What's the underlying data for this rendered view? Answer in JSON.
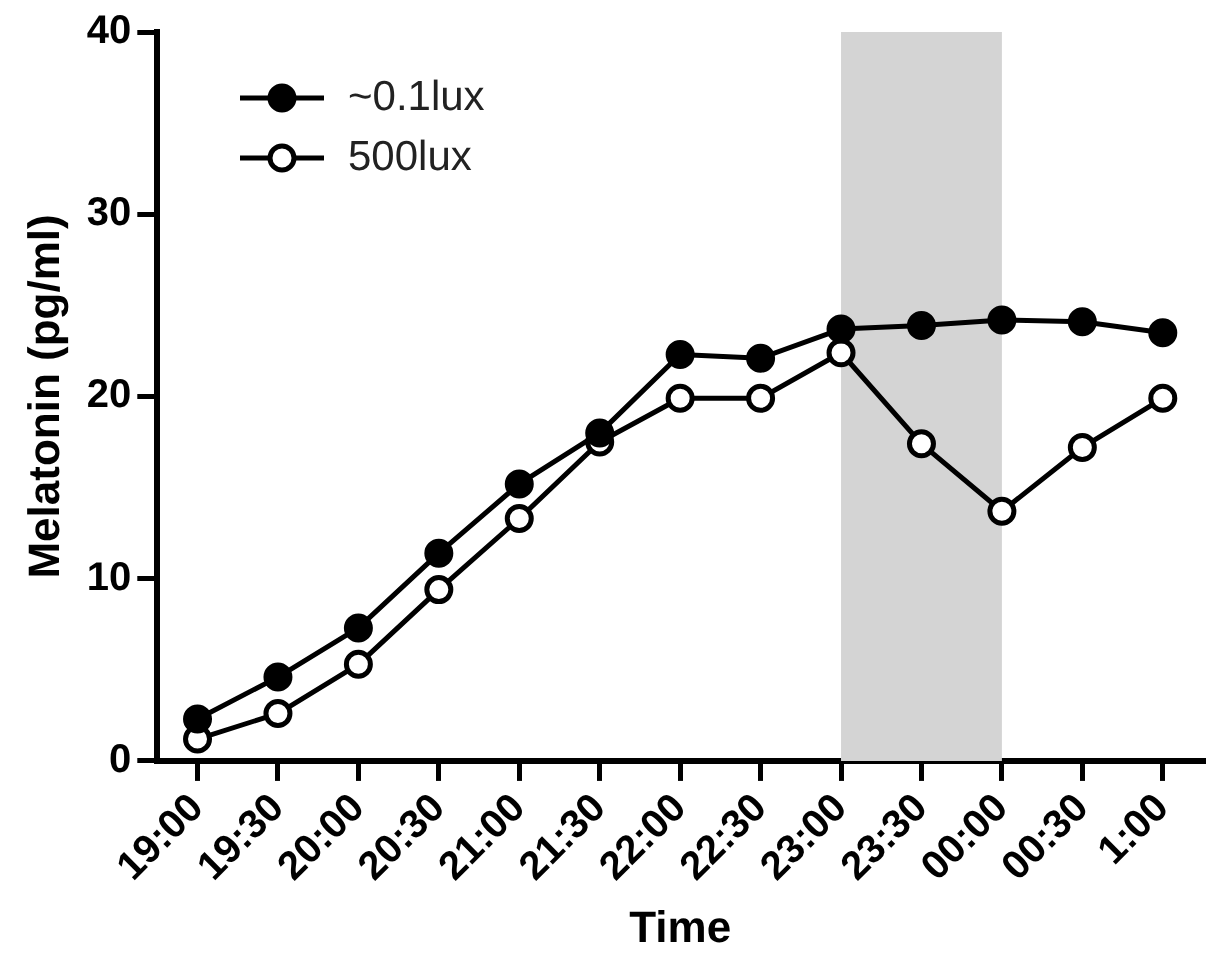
{
  "chart_data": {
    "type": "line",
    "xlabel": "Time",
    "ylabel": "Melatonin (pg/ml)",
    "categories": [
      "19:00",
      "19:30",
      "20:00",
      "20:30",
      "21:00",
      "21:30",
      "22:00",
      "22:30",
      "23:00",
      "23:30",
      "00:00",
      "00:30",
      "1:00"
    ],
    "series": [
      {
        "name": "~0.1lux",
        "color": "#000000",
        "values": [
          2.3,
          4.6,
          7.3,
          11.4,
          15.2,
          18.0,
          22.3,
          22.1,
          23.7,
          23.9,
          24.2,
          24.1,
          23.5
        ]
      },
      {
        "name": "500lux",
        "color": "#000000",
        "values": [
          1.2,
          2.6,
          5.3,
          9.4,
          13.3,
          17.5,
          19.9,
          19.9,
          22.4,
          17.4,
          13.7,
          17.2,
          19.9
        ]
      }
    ],
    "ylim": [
      0,
      40
    ],
    "yticks": [
      0,
      10,
      20,
      30,
      40
    ],
    "bands": [
      {
        "axis": "x",
        "from": "23:00",
        "to": "00:00",
        "color": "#d4d4d4"
      }
    ],
    "grid": false,
    "legend": "top left",
    "marker": "circle",
    "line_style": "solid"
  }
}
